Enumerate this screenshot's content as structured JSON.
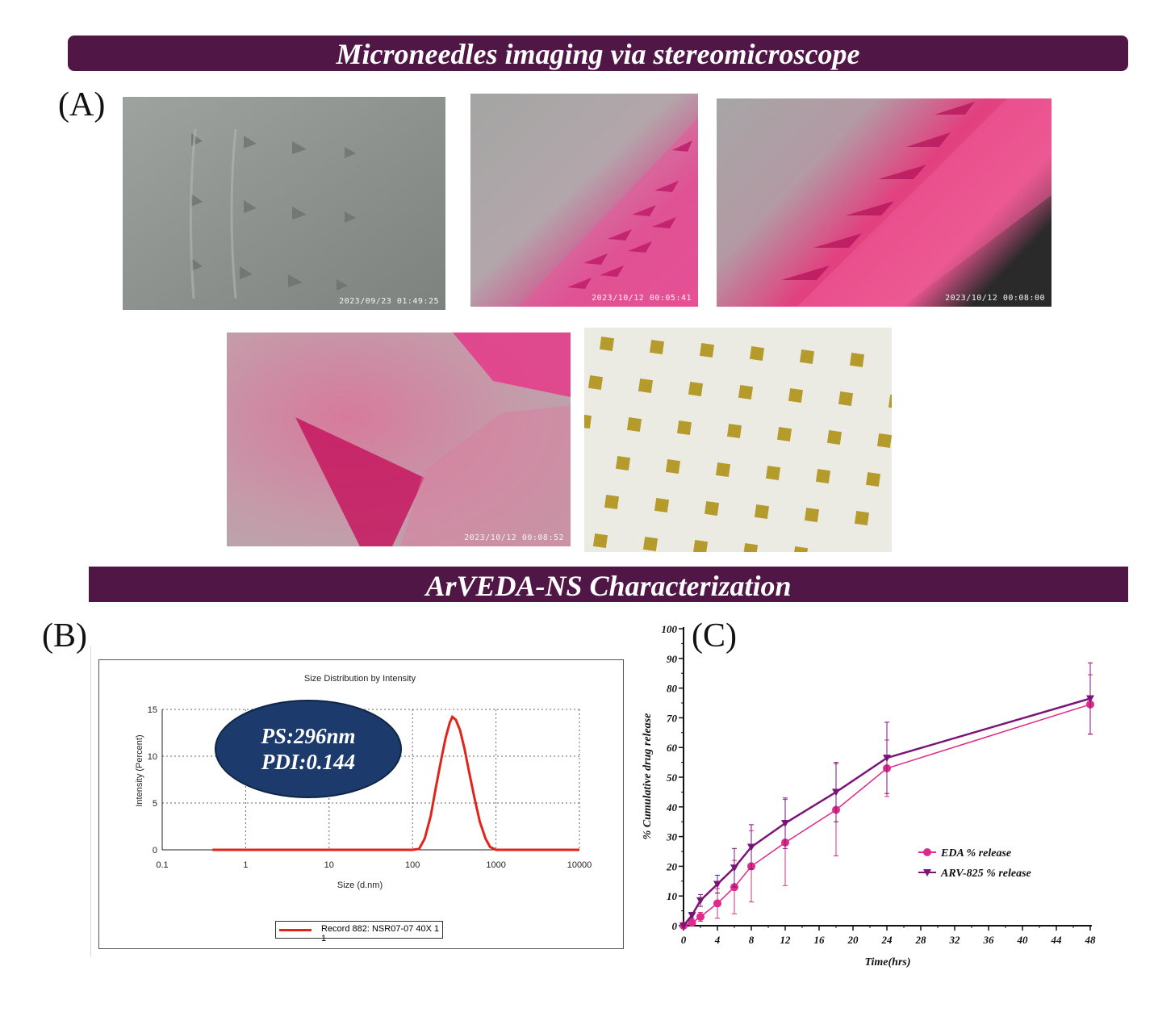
{
  "banner_top": "Microneedles imaging via stereomicroscope",
  "banner_bottom": "ArVEDA-NS Characterization",
  "panel_labels": {
    "a": "(A)",
    "b": "(B)",
    "c": "(C)"
  },
  "photos": [
    {
      "timestamp": "2023/09/23 01:49:25"
    },
    {
      "timestamp": "2023/10/12 00:05:41"
    },
    {
      "timestamp": "2023/10/12 00:08:00"
    },
    {
      "timestamp": "2023/10/12 00:08:52"
    },
    {
      "timestamp": ""
    }
  ],
  "dls": {
    "title": "Size Distribution by Intensity",
    "annotation_ps": "PS:296nm",
    "annotation_pdi": "PDI:0.144",
    "legend": "Record 882: NSR07-07 40X 1 1",
    "color": "#e2231a"
  },
  "chart_data": [
    {
      "type": "line",
      "title": "Size Distribution by Intensity",
      "xlabel": "Size (d.nm)",
      "ylabel": "Intensity (Percent)",
      "x_scale": "log",
      "xlim": [
        0.1,
        10000
      ],
      "ylim": [
        0,
        15
      ],
      "x_ticks": [
        "0.1",
        "1",
        "10",
        "100",
        "1000",
        "10000"
      ],
      "y_ticks": [
        "0",
        "5",
        "10",
        "15"
      ],
      "grid": true,
      "series": [
        {
          "name": "Record 882: NSR07-07 40X 1 1",
          "x": [
            0.4,
            100,
            120,
            140,
            165,
            190,
            220,
            250,
            280,
            300,
            330,
            370,
            420,
            480,
            550,
            640,
            750,
            850,
            1000,
            10000
          ],
          "y": [
            0,
            0,
            0.1,
            1.2,
            3.6,
            6.6,
            9.6,
            12.0,
            13.6,
            14.2,
            13.9,
            12.8,
            10.8,
            8.2,
            5.6,
            3.0,
            1.2,
            0.3,
            0,
            0
          ]
        }
      ]
    },
    {
      "type": "line",
      "xlabel": "Time(hrs)",
      "ylabel": "% Cumulative drug release",
      "xlim": [
        0,
        48
      ],
      "ylim": [
        0,
        100
      ],
      "x_ticks": [
        "0",
        "4",
        "8",
        "12",
        "16",
        "20",
        "24",
        "28",
        "32",
        "36",
        "40",
        "44",
        "48"
      ],
      "y_ticks": [
        "0",
        "10",
        "20",
        "30",
        "40",
        "50",
        "60",
        "70",
        "80",
        "90",
        "100"
      ],
      "grid": false,
      "legend_position": "center-right",
      "series": [
        {
          "name": "EDA % release",
          "color": "#e0298a",
          "marker": "circle",
          "x": [
            0,
            1,
            2,
            4,
            6,
            8,
            12,
            18,
            24,
            48
          ],
          "y": [
            0,
            1,
            3,
            7.5,
            13,
            20,
            28,
            39,
            53,
            74.5
          ],
          "error": [
            0,
            0.5,
            1.5,
            5,
            9,
            12,
            14.5,
            15.5,
            9.5,
            10
          ]
        },
        {
          "name": "ARV-825 % release",
          "color": "#7a1478",
          "marker": "triangle-down",
          "x": [
            0,
            1,
            2,
            4,
            6,
            8,
            12,
            18,
            24,
            48
          ],
          "y": [
            0,
            3.5,
            8.5,
            14,
            19.5,
            26.5,
            34.5,
            45,
            56.5,
            76.5
          ],
          "error": [
            0,
            1,
            2,
            3,
            6.5,
            7.5,
            8.5,
            10,
            12,
            12
          ]
        }
      ]
    }
  ]
}
